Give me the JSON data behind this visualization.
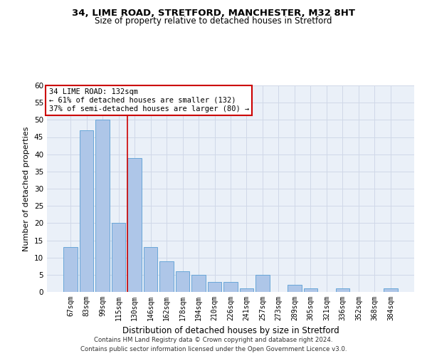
{
  "title": "34, LIME ROAD, STRETFORD, MANCHESTER, M32 8HT",
  "subtitle": "Size of property relative to detached houses in Stretford",
  "xlabel": "Distribution of detached houses by size in Stretford",
  "ylabel": "Number of detached properties",
  "categories": [
    "67sqm",
    "83sqm",
    "99sqm",
    "115sqm",
    "130sqm",
    "146sqm",
    "162sqm",
    "178sqm",
    "194sqm",
    "210sqm",
    "226sqm",
    "241sqm",
    "257sqm",
    "273sqm",
    "289sqm",
    "305sqm",
    "321sqm",
    "336sqm",
    "352sqm",
    "368sqm",
    "384sqm"
  ],
  "values": [
    13,
    47,
    50,
    20,
    39,
    13,
    9,
    6,
    5,
    3,
    3,
    1,
    5,
    0,
    2,
    1,
    0,
    1,
    0,
    0,
    1
  ],
  "bar_color": "#aec6e8",
  "bar_edge_color": "#5a9fd4",
  "vline_index": 4,
  "annotation_text": "34 LIME ROAD: 132sqm\n← 61% of detached houses are smaller (132)\n37% of semi-detached houses are larger (80) →",
  "annotation_box_color": "#ffffff",
  "annotation_box_edge": "#cc0000",
  "vline_color": "#cc0000",
  "grid_color": "#d0d8e8",
  "background_color": "#ffffff",
  "axes_bg_color": "#eaf0f8",
  "footer_line1": "Contains HM Land Registry data © Crown copyright and database right 2024.",
  "footer_line2": "Contains public sector information licensed under the Open Government Licence v3.0.",
  "ylim": [
    0,
    60
  ],
  "yticks": [
    0,
    5,
    10,
    15,
    20,
    25,
    30,
    35,
    40,
    45,
    50,
    55,
    60
  ]
}
